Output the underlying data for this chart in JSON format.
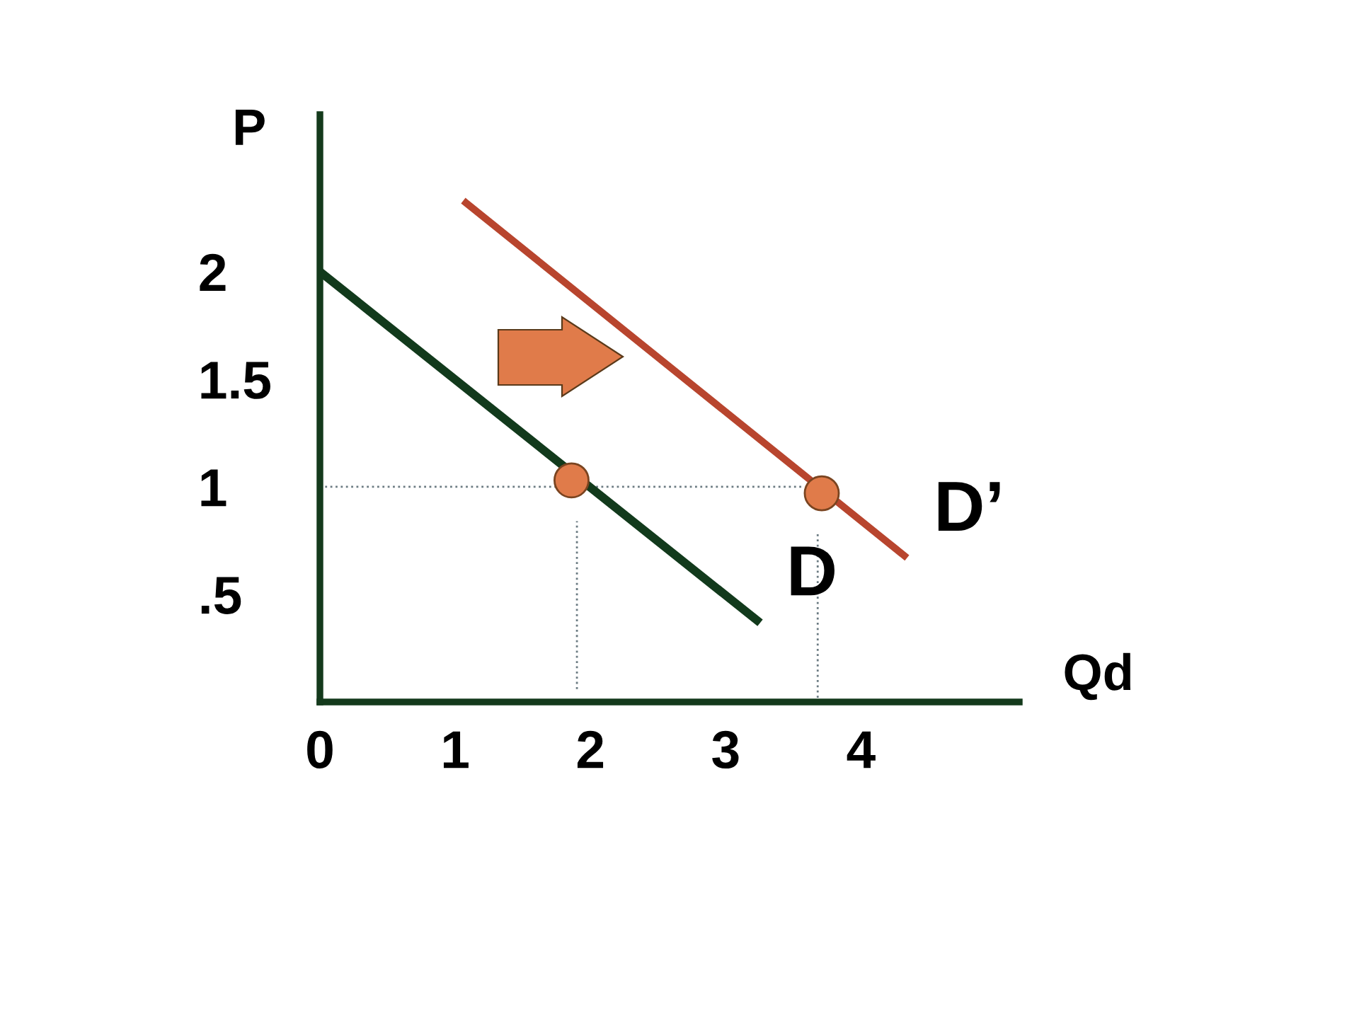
{
  "chart_data": {
    "type": "line",
    "xlabel": "Qd",
    "ylabel": "P",
    "xlim": [
      0,
      5.17
    ],
    "ylim": [
      0,
      2.73
    ],
    "xticks": [
      0,
      1,
      2,
      3,
      4
    ],
    "yticks": [
      {
        "value": 0.5,
        "label": ".5"
      },
      1,
      1.5,
      2
    ],
    "series": [
      {
        "type": "line",
        "color": "#6b7b82",
        "line_style": "dotted",
        "x": [
          0,
          3.58
        ],
        "values": [
          1,
          1
        ]
      },
      {
        "type": "line",
        "color": "#6b7b82",
        "line_style": "dotted",
        "x": [
          1.9,
          1.9
        ],
        "values": [
          0.06,
          0.84
        ]
      },
      {
        "type": "line",
        "color": "#6b7b82",
        "line_style": "dotted",
        "x": [
          3.68,
          3.68
        ],
        "values": [
          0.02,
          0.78
        ]
      },
      {
        "name": "D",
        "color": "#123a1c",
        "x": [
          0,
          3.23
        ],
        "values": [
          2,
          0.38
        ]
      },
      {
        "name": "D’",
        "color": "#b8452e",
        "x": [
          1.08,
          4.32
        ],
        "values": [
          2.32,
          0.68
        ]
      },
      {
        "type": "scatter",
        "color": "#e07b4a",
        "marker": "circle",
        "x": [
          1.86,
          3.71
        ],
        "values": [
          1.03,
          0.97
        ]
      }
    ]
  }
}
